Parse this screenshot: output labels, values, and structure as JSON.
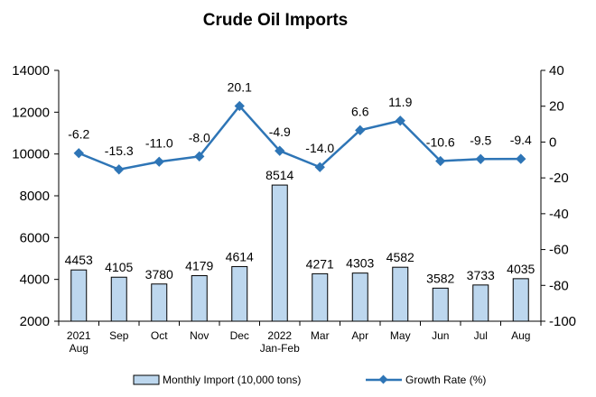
{
  "chart_data": {
    "type": "bar",
    "title": "Crude Oil Imports",
    "categories": [
      [
        "2021",
        "Aug"
      ],
      [
        "Sep"
      ],
      [
        "Oct"
      ],
      [
        "Nov"
      ],
      [
        "Dec"
      ],
      [
        "2022",
        "Jan-Feb"
      ],
      [
        "Mar"
      ],
      [
        "Apr"
      ],
      [
        "May"
      ],
      [
        "Jun"
      ],
      [
        "Jul"
      ],
      [
        "Aug"
      ]
    ],
    "series": [
      {
        "name": "Monthly Import (10,000 tons)",
        "type": "bar",
        "axis": "left",
        "values": [
          4453,
          4105,
          3780,
          4179,
          4614,
          8514,
          4271,
          4303,
          4582,
          3582,
          3733,
          4035
        ],
        "labels": [
          "4453",
          "4105",
          "3780",
          "4179",
          "4614",
          "8514",
          "4271",
          "4303",
          "4582",
          "3582",
          "3733",
          "4035"
        ]
      },
      {
        "name": "Growth Rate (%)",
        "type": "line",
        "axis": "right",
        "values": [
          -6.2,
          -15.3,
          -11.0,
          -8.0,
          20.1,
          -4.9,
          -14.0,
          6.6,
          11.9,
          -10.6,
          -9.5,
          -9.4
        ],
        "labels": [
          "-6.2",
          "-15.3",
          "-11.0",
          "-8.0",
          "20.1",
          "-4.9",
          "-14.0",
          "6.6",
          "11.9",
          "-10.6",
          "-9.5",
          "-9.4"
        ]
      }
    ],
    "y_left": {
      "min": 2000,
      "max": 14000,
      "ticks": [
        "2000",
        "4000",
        "6000",
        "8000",
        "10000",
        "12000",
        "14000"
      ]
    },
    "y_right": {
      "min": -100,
      "max": 40,
      "ticks": [
        "-100",
        "-80",
        "-60",
        "-40",
        "-20",
        "0",
        "20",
        "40"
      ]
    },
    "grid": false,
    "legend_position": "bottom",
    "colors": {
      "bar_fill": "#bdd7ee",
      "bar_stroke": "#000000",
      "line": "#2e75b6",
      "axis": "#000000"
    }
  }
}
